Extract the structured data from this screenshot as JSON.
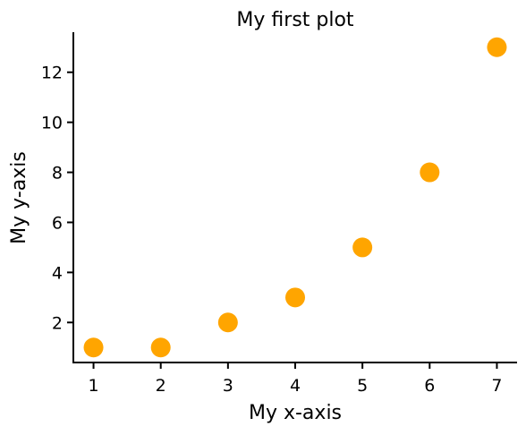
{
  "chart_data": {
    "type": "scatter",
    "title": "My first plot",
    "xlabel": "My x-axis",
    "ylabel": "My y-axis",
    "x": [
      1,
      2,
      3,
      4,
      5,
      6,
      7
    ],
    "y": [
      1,
      1,
      2,
      3,
      5,
      8,
      13
    ],
    "xlim": [
      0.7,
      7.3
    ],
    "ylim": [
      0.4,
      13.6
    ],
    "xticks": [
      1,
      2,
      3,
      4,
      5,
      6,
      7
    ],
    "yticks": [
      2,
      4,
      6,
      8,
      10,
      12
    ],
    "grid": false,
    "legend": "none",
    "marker_color": "#ffa500",
    "axis_color": "#000000",
    "spines": [
      "left",
      "bottom"
    ]
  }
}
